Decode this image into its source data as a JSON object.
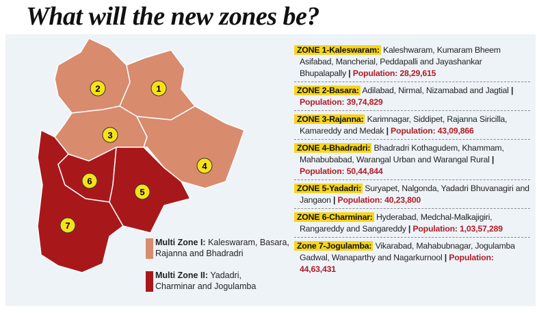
{
  "title": "What will the new zones be?",
  "colors": {
    "multi_zone_1": "#d98b6e",
    "multi_zone_2": "#a8181b",
    "highlight": "#f7d51c",
    "population": "#b01c24",
    "marker": "#f7e11a"
  },
  "map": {
    "markers": [
      "1",
      "2",
      "3",
      "4",
      "5",
      "6",
      "7"
    ]
  },
  "legend": [
    {
      "title": "Multi Zone I:",
      "text": "Kaleswaram, Basara, Rajanna and Bhadradri"
    },
    {
      "title": "Multi Zone II:",
      "text": "Yadadri, Charminar and Jogulamba"
    }
  ],
  "zones": [
    {
      "name": "ZONE 1-Kaleswaram:",
      "districts": "Kaleshwaram, Kumaram Bheem Asifabad, Mancherial, Peddapalli and Jayashankar Bhupalapally",
      "population": "Population: 28,29,615"
    },
    {
      "name": "ZONE 2-Basara:",
      "districts": "Adilabad, Nirmal, Nizamabad and Jagtial",
      "population": "Population: 39,74,829"
    },
    {
      "name": "ZONE 3-Rajanna:",
      "districts": "Karimnagar, Siddipet, Rajanna Siricilla, Kamareddy and Medak",
      "population": "Population: 43,09,866"
    },
    {
      "name": "ZONE 4-Bhadradri:",
      "districts": "Bhadradri Kothagudem, Khammam, Mahabubabad, Warangal Urban and Warangal Rural",
      "population": "Population: 50,44,844"
    },
    {
      "name": "ZONE 5-Yadadri:",
      "districts": "Suryapet, Nalgonda, Yadadri Bhuvanagiri and Jangaon",
      "population": "Population: 40,23,800"
    },
    {
      "name": "ZONE 6-Charminar:",
      "districts": "Hyderabad, Medchal-Malkajigiri, Rangareddy and Sangareddy",
      "population": "Population: 1,03,57,289"
    },
    {
      "name": "Zone 7-Jogulamba:",
      "districts": "Vikarabad, Mahabubnagar, Jogulamba Gadwal, Wanaparthy and Nagarkurnool",
      "population": "Population: 44,63,431"
    }
  ]
}
